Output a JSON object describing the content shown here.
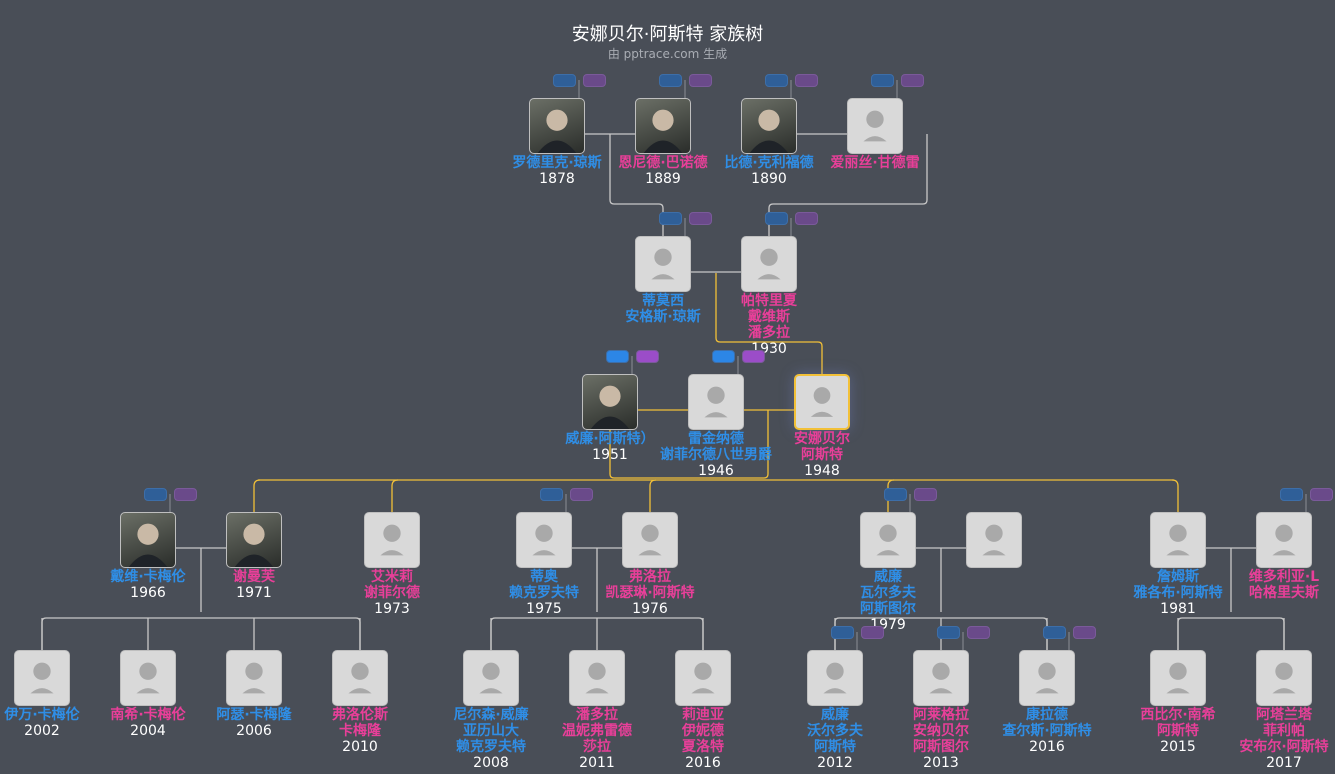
{
  "header": {
    "title": "安娜贝尔·阿斯特 家族树",
    "subtitle": "由 pptrace.com 生成"
  },
  "colors": {
    "background": "#494e57",
    "male": "#2f8ee6",
    "female": "#e83f99",
    "highlight_line": "#f2c038",
    "line": "#c8c8c8"
  },
  "people": [
    {
      "id": "p1",
      "names": [
        "罗德里克·琼斯"
      ],
      "year": "1878",
      "gender": "male",
      "photo": true
    },
    {
      "id": "p2",
      "names": [
        "恩尼德·巴诺德"
      ],
      "year": "1889",
      "gender": "female",
      "photo": true
    },
    {
      "id": "p3",
      "names": [
        "比德·克利福德"
      ],
      "year": "1890",
      "gender": "male",
      "photo": true
    },
    {
      "id": "p4",
      "names": [
        "爱丽丝·甘德雷"
      ],
      "year": "",
      "gender": "female",
      "photo": false
    },
    {
      "id": "p5",
      "names": [
        "蒂莫西",
        "安格斯·琼斯"
      ],
      "year": "",
      "gender": "male",
      "photo": false
    },
    {
      "id": "p6",
      "names": [
        "帕特里夏",
        "戴维斯",
        "潘多拉"
      ],
      "year": "1930",
      "gender": "female",
      "photo": false
    },
    {
      "id": "p7",
      "names": [
        "威廉·阿斯特）"
      ],
      "year": "1951",
      "gender": "male",
      "photo": true
    },
    {
      "id": "p8",
      "names": [
        "雷金纳德",
        "谢菲尔德八世男爵"
      ],
      "year": "1946",
      "gender": "male",
      "photo": false
    },
    {
      "id": "p9",
      "names": [
        "安娜贝尔",
        "阿斯特"
      ],
      "year": "1948",
      "gender": "female",
      "photo": false,
      "focus": true
    },
    {
      "id": "p10",
      "names": [
        "戴维·卡梅伦"
      ],
      "year": "1966",
      "gender": "male",
      "photo": true
    },
    {
      "id": "p11",
      "names": [
        "谢曼芙"
      ],
      "year": "1971",
      "gender": "female",
      "photo": true
    },
    {
      "id": "p12",
      "names": [
        "艾米莉",
        "谢菲尔德"
      ],
      "year": "1973",
      "gender": "female",
      "photo": false
    },
    {
      "id": "p13",
      "names": [
        "蒂奥",
        "赖克罗夫特"
      ],
      "year": "1975",
      "gender": "male",
      "photo": false
    },
    {
      "id": "p14",
      "names": [
        "弗洛拉",
        "凯瑟琳·阿斯特"
      ],
      "year": "1976",
      "gender": "female",
      "photo": false
    },
    {
      "id": "p15",
      "names": [
        "威廉",
        "瓦尔多夫",
        "阿斯图尔"
      ],
      "year": "1979",
      "gender": "male",
      "photo": false
    },
    {
      "id": "p16",
      "names": [],
      "year": "",
      "gender": "female",
      "photo": false
    },
    {
      "id": "p17",
      "names": [
        "詹姆斯",
        "雅各布·阿斯特"
      ],
      "year": "1981",
      "gender": "male",
      "photo": false
    },
    {
      "id": "p18",
      "names": [
        "维多利亚·L",
        "哈格里夫斯"
      ],
      "year": "",
      "gender": "female",
      "photo": false
    },
    {
      "id": "p19",
      "names": [
        "伊万·卡梅伦"
      ],
      "year": "2002",
      "gender": "male",
      "photo": false
    },
    {
      "id": "p20",
      "names": [
        "南希·卡梅伦"
      ],
      "year": "2004",
      "gender": "female",
      "photo": false
    },
    {
      "id": "p21",
      "names": [
        "阿瑟·卡梅隆"
      ],
      "year": "2006",
      "gender": "male",
      "photo": false
    },
    {
      "id": "p22",
      "names": [
        "弗洛伦斯",
        "卡梅隆"
      ],
      "year": "2010",
      "gender": "female",
      "photo": false
    },
    {
      "id": "p23",
      "names": [
        "尼尔森·威廉",
        "亚历山大",
        "赖克罗夫特"
      ],
      "year": "2008",
      "gender": "male",
      "photo": false
    },
    {
      "id": "p24",
      "names": [
        "潘多拉",
        "温妮弗雷德",
        "莎拉"
      ],
      "year": "2011",
      "gender": "female",
      "photo": false
    },
    {
      "id": "p25",
      "names": [
        "莉迪亚",
        "伊妮德",
        "夏洛特"
      ],
      "year": "2016",
      "gender": "female",
      "photo": false
    },
    {
      "id": "p26",
      "names": [
        "威廉",
        "沃尔多夫",
        "阿斯特"
      ],
      "year": "2012",
      "gender": "male",
      "photo": false
    },
    {
      "id": "p27",
      "names": [
        "阿莱格拉",
        "安纳贝尔",
        "阿斯图尔"
      ],
      "year": "2013",
      "gender": "female",
      "photo": false
    },
    {
      "id": "p28",
      "names": [
        "康拉德",
        "查尔斯·阿斯特"
      ],
      "year": "2016",
      "gender": "male",
      "photo": false
    },
    {
      "id": "p29",
      "names": [
        "西比尔·南希",
        "阿斯特"
      ],
      "year": "2015",
      "gender": "female",
      "photo": false
    },
    {
      "id": "p30",
      "names": [
        "阿塔兰塔",
        "菲利帕",
        "安布尔·阿斯特"
      ],
      "year": "2017",
      "gender": "female",
      "photo": false
    }
  ],
  "parent_toggles": [
    "p1",
    "p2",
    "p3",
    "p4",
    "p5",
    "p6",
    "p7",
    "p8",
    "p10",
    "p13",
    "p15",
    "p18",
    "p26",
    "p27",
    "p28"
  ],
  "watermark": "pptrace.com"
}
